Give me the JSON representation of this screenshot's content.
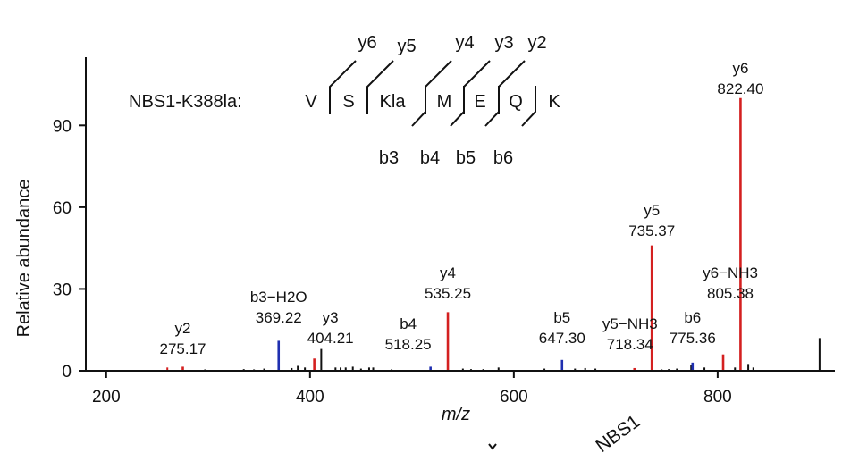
{
  "chart_data": {
    "type": "bar",
    "xlabel": "m/z",
    "ylabel": "Relative abundance",
    "xlim": [
      180,
      915
    ],
    "ylim": [
      0,
      115
    ],
    "x_ticks": [
      200,
      400,
      600,
      800
    ],
    "y_ticks": [
      0,
      30,
      60,
      90
    ],
    "grid": false,
    "colors": {
      "y_ion": "#d42020",
      "b_ion": "#1f2fb0",
      "other": "#111111"
    },
    "annotated_peaks": [
      {
        "label": "y2",
        "mz_text": "275.17",
        "x": 275.17,
        "y": 1.5,
        "ion": "y"
      },
      {
        "label": "b3−H2O",
        "mz_text": "369.22",
        "x": 369.22,
        "y": 11,
        "ion": "b"
      },
      {
        "label": "y3",
        "mz_text": "404.21",
        "x": 404.21,
        "y": 4.5,
        "ion": "y"
      },
      {
        "label": "b4",
        "mz_text": "518.25",
        "x": 518.25,
        "y": 1.5,
        "ion": "b"
      },
      {
        "label": "y4",
        "mz_text": "535.25",
        "x": 535.25,
        "y": 21.5,
        "ion": "y"
      },
      {
        "label": "b5",
        "mz_text": "647.30",
        "x": 647.3,
        "y": 4,
        "ion": "b"
      },
      {
        "label": "y5−NH3",
        "mz_text": "718.34",
        "x": 718.34,
        "y": 1,
        "ion": "y"
      },
      {
        "label": "y5",
        "mz_text": "735.37",
        "x": 735.37,
        "y": 46,
        "ion": "y"
      },
      {
        "label": "b6",
        "mz_text": "775.36",
        "x": 775.36,
        "y": 3,
        "ion": "b"
      },
      {
        "label": "y6−NH3",
        "mz_text": "805.38",
        "x": 805.38,
        "y": 6,
        "ion": "y"
      },
      {
        "label": "y6",
        "mz_text": "822.40",
        "x": 822.4,
        "y": 100,
        "ion": "y"
      }
    ],
    "other_peaks": [
      {
        "x": 260,
        "y": 1.2,
        "ion": "y"
      },
      {
        "x": 297,
        "y": 0.5,
        "ion": "other"
      },
      {
        "x": 335,
        "y": 0.6,
        "ion": "other"
      },
      {
        "x": 345,
        "y": 0.5,
        "ion": "other"
      },
      {
        "x": 355,
        "y": 0.8,
        "ion": "other"
      },
      {
        "x": 382,
        "y": 1.0,
        "ion": "other"
      },
      {
        "x": 388,
        "y": 1.8,
        "ion": "other"
      },
      {
        "x": 395,
        "y": 1.2,
        "ion": "other"
      },
      {
        "x": 411,
        "y": 8,
        "ion": "other"
      },
      {
        "x": 425,
        "y": 1.2,
        "ion": "other"
      },
      {
        "x": 430,
        "y": 1.2,
        "ion": "other"
      },
      {
        "x": 435,
        "y": 1.2,
        "ion": "other"
      },
      {
        "x": 442,
        "y": 1.5,
        "ion": "other"
      },
      {
        "x": 450,
        "y": 0.8,
        "ion": "other"
      },
      {
        "x": 458,
        "y": 1.2,
        "ion": "other"
      },
      {
        "x": 462,
        "y": 1.2,
        "ion": "other"
      },
      {
        "x": 480,
        "y": 0.5,
        "ion": "other"
      },
      {
        "x": 550,
        "y": 0.8,
        "ion": "other"
      },
      {
        "x": 558,
        "y": 0.6,
        "ion": "other"
      },
      {
        "x": 570,
        "y": 0.6,
        "ion": "other"
      },
      {
        "x": 585,
        "y": 1.2,
        "ion": "other"
      },
      {
        "x": 630,
        "y": 0.8,
        "ion": "other"
      },
      {
        "x": 660,
        "y": 0.8,
        "ion": "other"
      },
      {
        "x": 670,
        "y": 1.0,
        "ion": "other"
      },
      {
        "x": 680,
        "y": 0.8,
        "ion": "other"
      },
      {
        "x": 745,
        "y": 0.5,
        "ion": "other"
      },
      {
        "x": 752,
        "y": 0.6,
        "ion": "other"
      },
      {
        "x": 760,
        "y": 0.8,
        "ion": "other"
      },
      {
        "x": 774,
        "y": 2.2,
        "ion": "other"
      },
      {
        "x": 787,
        "y": 1.2,
        "ion": "other"
      },
      {
        "x": 817,
        "y": 1.2,
        "ion": "other"
      },
      {
        "x": 830,
        "y": 2.5,
        "ion": "other"
      },
      {
        "x": 835,
        "y": 1.2,
        "ion": "other"
      },
      {
        "x": 900,
        "y": 12,
        "ion": "other"
      }
    ],
    "sequence_annotation": {
      "peptide_label": "NBS1-K388la:",
      "residues": [
        "V",
        "S",
        "Kla",
        "M",
        "E",
        "Q",
        "K"
      ],
      "y_ions": [
        "y6",
        "y5",
        "y4",
        "y3",
        "y2"
      ],
      "b_ions": [
        "b3",
        "b4",
        "b5",
        "b6"
      ]
    },
    "cropped_text": [
      "NBS1"
    ]
  }
}
